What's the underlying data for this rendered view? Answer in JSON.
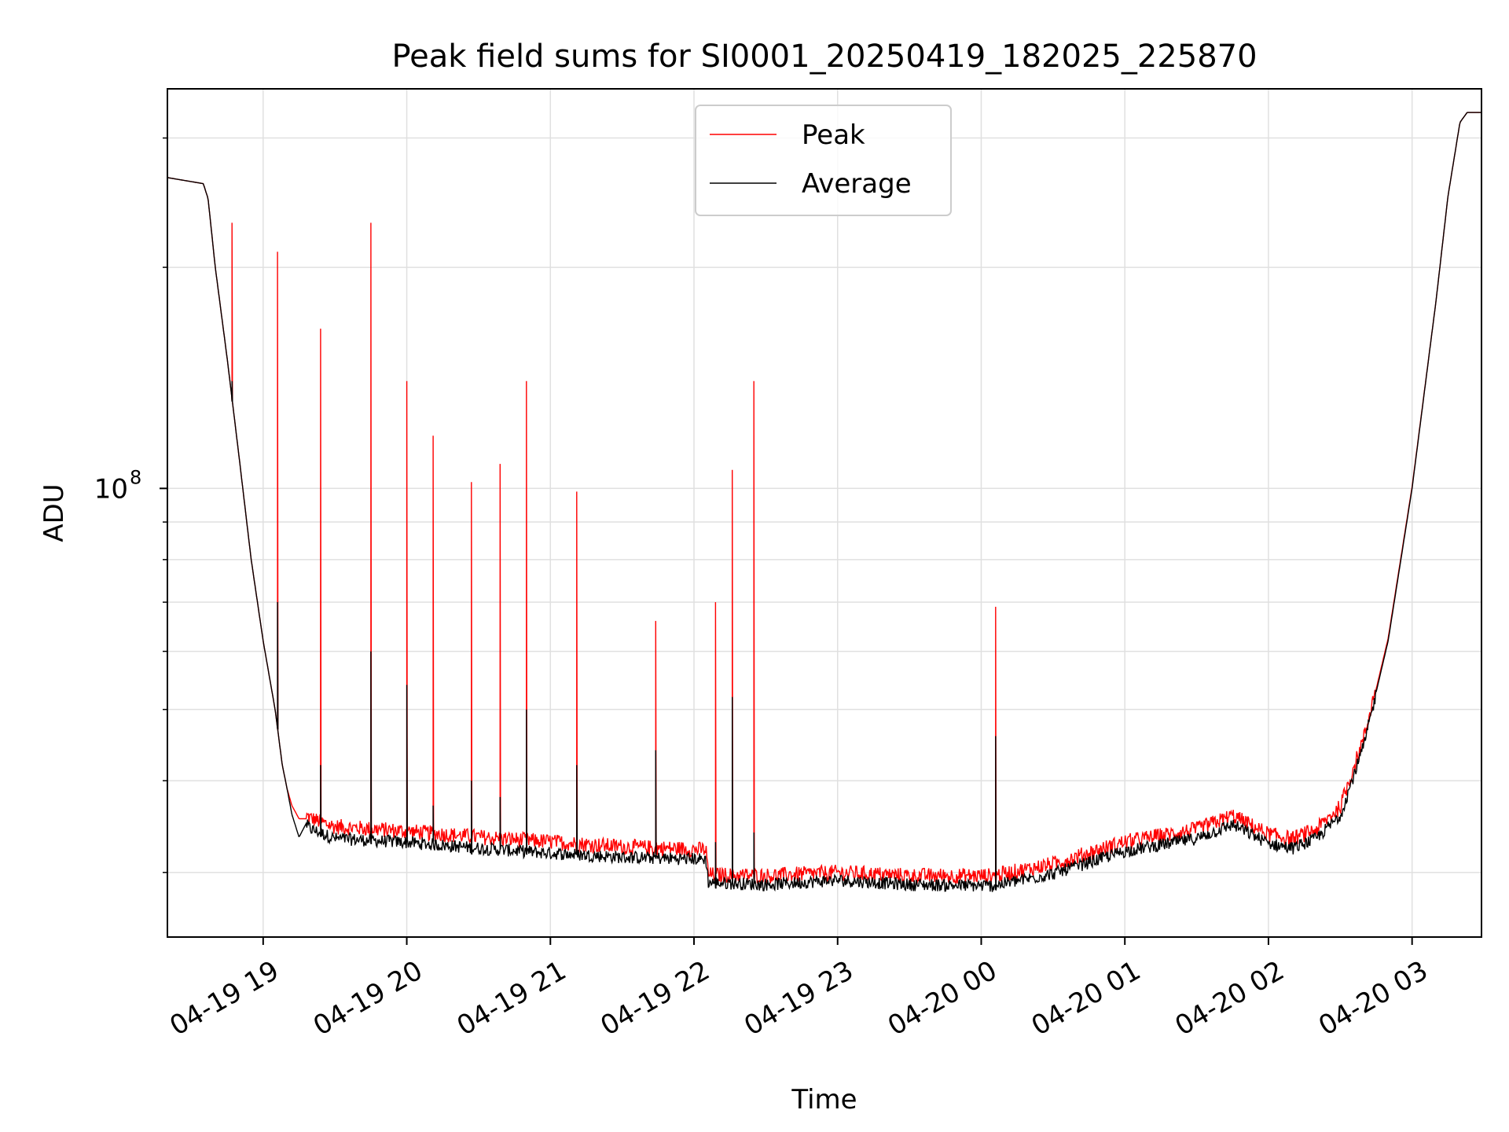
{
  "chart_data": {
    "type": "line",
    "title": "Peak field sums for SI0001_20250419_182025_225870",
    "xlabel": "Time",
    "ylabel": "ADU",
    "yscale": "log",
    "ylim": [
      24500000,
      350000000
    ],
    "y_major_tick": {
      "value": 100000000,
      "label_base": "10",
      "label_exp": "8"
    },
    "y_minor_ticks": [
      30000000,
      40000000,
      50000000,
      60000000,
      70000000,
      80000000,
      90000000,
      200000000,
      300000000
    ],
    "xlim": [
      "2025-04-19 18:20",
      "2025-04-20 03:29"
    ],
    "x_ticks": [
      {
        "value": "2025-04-19 19:00",
        "label": "04-19 19"
      },
      {
        "value": "2025-04-19 20:00",
        "label": "04-19 20"
      },
      {
        "value": "2025-04-19 21:00",
        "label": "04-19 21"
      },
      {
        "value": "2025-04-19 22:00",
        "label": "04-19 22"
      },
      {
        "value": "2025-04-19 23:00",
        "label": "04-19 23"
      },
      {
        "value": "2025-04-20 00:00",
        "label": "04-20 00"
      },
      {
        "value": "2025-04-20 01:00",
        "label": "04-20 01"
      },
      {
        "value": "2025-04-20 02:00",
        "label": "04-20 02"
      },
      {
        "value": "2025-04-20 03:00",
        "label": "04-20 03"
      }
    ],
    "grid": true,
    "legend_position": "upper center",
    "colors": {
      "peak": "#ff0000",
      "average": "#000000",
      "grid": "#e0e0e0"
    },
    "baseline": {
      "x": [
        "2025-04-19 18:20",
        "2025-04-19 18:35",
        "2025-04-19 18:37",
        "2025-04-19 18:40",
        "2025-04-19 18:45",
        "2025-04-19 18:50",
        "2025-04-19 18:55",
        "2025-04-19 19:00",
        "2025-04-19 19:05",
        "2025-04-19 19:08",
        "2025-04-19 19:10",
        "2025-04-19 19:12",
        "2025-04-19 19:15",
        "2025-04-19 19:18",
        "2025-04-19 19:20",
        "2025-04-19 19:25",
        "2025-04-19 19:30",
        "2025-04-19 20:00",
        "2025-04-19 20:30",
        "2025-04-19 21:00",
        "2025-04-19 21:30",
        "2025-04-19 22:05",
        "2025-04-19 22:06",
        "2025-04-19 22:30",
        "2025-04-19 23:00",
        "2025-04-19 23:30",
        "2025-04-19 23:58",
        "2025-04-20 00:05",
        "2025-04-20 00:30",
        "2025-04-20 01:00",
        "2025-04-20 01:30",
        "2025-04-20 01:45",
        "2025-04-20 02:00",
        "2025-04-20 02:10",
        "2025-04-20 02:20",
        "2025-04-20 02:30",
        "2025-04-20 02:40",
        "2025-04-20 02:50",
        "2025-04-20 03:00",
        "2025-04-20 03:10",
        "2025-04-20 03:15",
        "2025-04-20 03:20",
        "2025-04-20 03:23",
        "2025-04-20 03:27"
      ],
      "average": [
        265000000,
        260000000,
        248000000,
        200000000,
        150000000,
        110000000,
        80000000,
        62000000,
        50000000,
        42000000,
        39000000,
        36000000,
        33500000,
        35000000,
        34500000,
        34000000,
        33500000,
        33100000,
        32500000,
        32000000,
        31600000,
        31400000,
        29200000,
        29000000,
        29400000,
        29000000,
        28900000,
        28900000,
        30000000,
        32200000,
        33500000,
        35000000,
        33000000,
        32500000,
        33500000,
        36000000,
        45000000,
        62000000,
        100000000,
        180000000,
        250000000,
        315000000,
        325000000,
        325000000
      ],
      "peak": [
        265000000,
        260000000,
        248000000,
        200000000,
        150000000,
        110000000,
        80000000,
        62000000,
        50000000,
        42000000,
        39000000,
        37000000,
        35500000,
        35500000,
        35200000,
        34700000,
        34300000,
        33800000,
        33200000,
        32700000,
        32200000,
        31900000,
        29500000,
        29400000,
        29700000,
        29400000,
        29400000,
        29400000,
        30500000,
        32700000,
        34000000,
        35500000,
        33500000,
        33000000,
        34000000,
        36500000,
        45500000,
        62500000,
        100500000,
        180000000,
        250000000,
        315000000,
        325000000,
        325000000
      ]
    },
    "spikes": [
      {
        "time": "2025-04-19 18:47",
        "peak": 230000000,
        "average": 140000000
      },
      {
        "time": "2025-04-19 19:06",
        "peak": 210000000,
        "average": 70000000
      },
      {
        "time": "2025-04-19 19:24",
        "peak": 165000000,
        "average": 42000000
      },
      {
        "time": "2025-04-19 19:45",
        "peak": 230000000,
        "average": 60000000
      },
      {
        "time": "2025-04-19 20:00",
        "peak": 140000000,
        "average": 54000000
      },
      {
        "time": "2025-04-19 20:11",
        "peak": 118000000,
        "average": 37000000
      },
      {
        "time": "2025-04-19 20:27",
        "peak": 102000000,
        "average": 40000000
      },
      {
        "time": "2025-04-19 20:39",
        "peak": 108000000,
        "average": 38000000
      },
      {
        "time": "2025-04-19 20:50",
        "peak": 140000000,
        "average": 50000000
      },
      {
        "time": "2025-04-19 21:11",
        "peak": 99000000,
        "average": 42000000
      },
      {
        "time": "2025-04-19 21:44",
        "peak": 66000000,
        "average": 44000000
      },
      {
        "time": "2025-04-19 22:09",
        "peak": 70000000,
        "average": 33000000
      },
      {
        "time": "2025-04-19 22:16",
        "peak": 106000000,
        "average": 52000000
      },
      {
        "time": "2025-04-19 22:25",
        "peak": 140000000,
        "average": 34000000
      },
      {
        "time": "2025-04-20 00:06",
        "peak": 69000000,
        "average": 46000000
      }
    ],
    "series": [
      {
        "name": "Peak"
      },
      {
        "name": "Average"
      }
    ]
  }
}
